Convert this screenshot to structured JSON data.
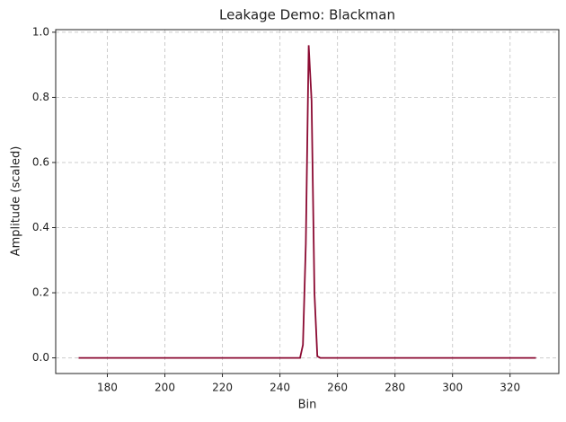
{
  "chart_data": {
    "type": "line",
    "title": "Leakage Demo: Blackman",
    "x_label": "Bin",
    "y_label": "Amplitude (scaled)",
    "x": [
      170,
      247,
      248,
      249,
      250,
      251,
      252,
      253,
      254,
      329
    ],
    "series": [
      {
        "color": "#8b0a32",
        "values": [
          0,
          0,
          0.04,
          0.35,
          0.96,
          0.79,
          0.2,
          0.005,
          0,
          0
        ]
      }
    ],
    "xlim": [
      162.05,
      336.95
    ],
    "ylim": [
      -0.048,
      1.008
    ],
    "xticks": [
      180,
      200,
      220,
      240,
      260,
      280,
      300,
      320
    ],
    "yticks": [
      {
        "value": 0,
        "label": "0.0"
      },
      {
        "value": 0.2,
        "label": "0.2"
      },
      {
        "value": 0.4,
        "label": "0.4"
      },
      {
        "value": 0.6,
        "label": "0.6"
      },
      {
        "value": 0.8,
        "label": "0.8"
      },
      {
        "value": 1,
        "label": "1.0"
      }
    ],
    "grid": true
  }
}
